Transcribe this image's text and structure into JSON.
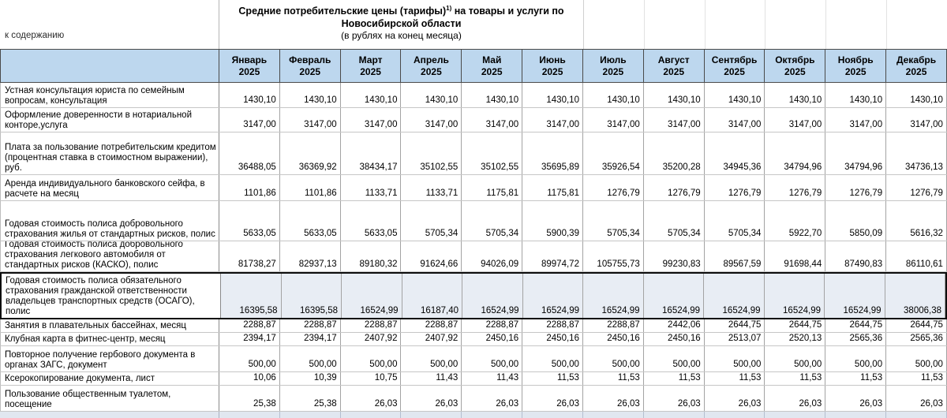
{
  "page": {
    "back_link": "к содержанию",
    "title_pre": "Средние потребительские цены (тарифы)",
    "title_sup": "1)",
    "title_post": " на товары и услуги по Новосибирской области",
    "subtitle": "(в рублях на конец месяца)"
  },
  "colors": {
    "header_bg": "#bdd7ee",
    "highlight_row_bg": "#e8edf4",
    "selection_border": "#000000"
  },
  "table": {
    "months": [
      {
        "month": "Январь",
        "year": "2025"
      },
      {
        "month": "Февраль",
        "year": "2025"
      },
      {
        "month": "Март",
        "year": "2025"
      },
      {
        "month": "Апрель",
        "year": "2025"
      },
      {
        "month": "Май",
        "year": "2025"
      },
      {
        "month": "Июнь",
        "year": "2025"
      },
      {
        "month": "Июль",
        "year": "2025"
      },
      {
        "month": "Август",
        "year": "2025"
      },
      {
        "month": "Сентябрь",
        "year": "2025"
      },
      {
        "month": "Октябрь",
        "year": "2025"
      },
      {
        "month": "Ноябрь",
        "year": "2025"
      },
      {
        "month": "Декабрь",
        "year": "2025"
      }
    ],
    "rows": [
      {
        "label": "Устная консультация юриста по семейным вопросам, консультация",
        "highlighted": false,
        "values": [
          "1430,10",
          "1430,10",
          "1430,10",
          "1430,10",
          "1430,10",
          "1430,10",
          "1430,10",
          "1430,10",
          "1430,10",
          "1430,10",
          "1430,10",
          "1430,10"
        ]
      },
      {
        "label": "Оформление доверенности в нотариальной конторе,услуга",
        "highlighted": false,
        "values": [
          "3147,00",
          "3147,00",
          "3147,00",
          "3147,00",
          "3147,00",
          "3147,00",
          "3147,00",
          "3147,00",
          "3147,00",
          "3147,00",
          "3147,00",
          "3147,00"
        ]
      },
      {
        "label": "Плата за пользование потребительским кредитом (процентная ставка в стоимостном выражении), руб.",
        "highlighted": false,
        "values": [
          "36488,05",
          "36369,92",
          "38434,17",
          "35102,55",
          "35102,55",
          "35695,89",
          "35926,54",
          "35200,28",
          "34945,36",
          "34794,96",
          "34794,96",
          "34736,13"
        ]
      },
      {
        "label": "Аренда индивидуального банковского сейфа, в расчете на месяц",
        "highlighted": false,
        "values": [
          "1101,86",
          "1101,86",
          "1133,71",
          "1133,71",
          "1175,81",
          "1175,81",
          "1276,79",
          "1276,79",
          "1276,79",
          "1276,79",
          "1276,79",
          "1276,79"
        ]
      },
      {
        "label": "Годовая стоимость полиса добровольного страхования жилья от стандартных рисков, полис",
        "highlighted": false,
        "values": [
          "5633,05",
          "5633,05",
          "5633,05",
          "5705,34",
          "5705,34",
          "5900,39",
          "5705,34",
          "5705,34",
          "5705,34",
          "5922,70",
          "5850,09",
          "5616,32"
        ]
      },
      {
        "label": "Годовая стоимость полиса добровольного страхования легкового автомобиля от стандартных рисков (КАСКО), полис",
        "highlighted": false,
        "values": [
          "81738,27",
          "82937,13",
          "89180,32",
          "91624,66",
          "94026,09",
          "89974,72",
          "105755,73",
          "99230,83",
          "89567,59",
          "91698,44",
          "87490,83",
          "86110,61"
        ]
      },
      {
        "label": "Годовая стоимость полиса обязательного страхования гражданской ответственности владельцев транспортных средств (ОСАГО), полис",
        "highlighted": true,
        "values": [
          "16395,58",
          "16395,58",
          "16524,99",
          "16187,40",
          "16524,99",
          "16524,99",
          "16524,99",
          "16524,99",
          "16524,99",
          "16524,99",
          "16524,99",
          "38006,38"
        ]
      },
      {
        "label": "Занятия в плавательных бассейнах, месяц",
        "highlighted": false,
        "values": [
          "2288,87",
          "2288,87",
          "2288,87",
          "2288,87",
          "2288,87",
          "2288,87",
          "2288,87",
          "2442,06",
          "2644,75",
          "2644,75",
          "2644,75",
          "2644,75"
        ]
      },
      {
        "label": "Клубная карта в фитнес-центр, месяц",
        "highlighted": false,
        "values": [
          "2394,17",
          "2394,17",
          "2407,92",
          "2407,92",
          "2450,16",
          "2450,16",
          "2450,16",
          "2450,16",
          "2513,07",
          "2520,13",
          "2565,36",
          "2565,36"
        ]
      },
      {
        "label": "Повторное получение гербового документа в органах ЗАГС, документ",
        "highlighted": false,
        "values": [
          "500,00",
          "500,00",
          "500,00",
          "500,00",
          "500,00",
          "500,00",
          "500,00",
          "500,00",
          "500,00",
          "500,00",
          "500,00",
          "500,00"
        ]
      },
      {
        "label": "Ксерокопирование документа, лист",
        "highlighted": false,
        "values": [
          "10,06",
          "10,39",
          "10,75",
          "11,43",
          "11,43",
          "11,53",
          "11,53",
          "11,53",
          "11,53",
          "11,53",
          "11,53",
          "11,53"
        ]
      },
      {
        "label": "Пользование общественным туалетом, посещение",
        "highlighted": false,
        "values": [
          "25,38",
          "25,38",
          "26,03",
          "26,03",
          "26,03",
          "26,03",
          "26,03",
          "26,03",
          "26,03",
          "26,03",
          "26,03",
          "26,03"
        ]
      }
    ]
  }
}
